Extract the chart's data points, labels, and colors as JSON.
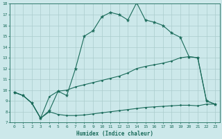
{
  "xlabel": "Humidex (Indice chaleur)",
  "bg_color": "#cce8ea",
  "grid_color": "#aacccc",
  "line_color": "#1a6b5a",
  "xlim": [
    -0.5,
    23.5
  ],
  "ylim": [
    7,
    18
  ],
  "yticks": [
    7,
    8,
    9,
    10,
    11,
    12,
    13,
    14,
    15,
    16,
    17,
    18
  ],
  "xticks": [
    0,
    1,
    2,
    3,
    4,
    5,
    6,
    7,
    8,
    9,
    10,
    11,
    12,
    13,
    14,
    15,
    16,
    17,
    18,
    19,
    20,
    21,
    22,
    23
  ],
  "line1_x": [
    0,
    1,
    2,
    3,
    4,
    5,
    6,
    7,
    8,
    9,
    10,
    11,
    12,
    13,
    14,
    15,
    16,
    17,
    18,
    19,
    20,
    21,
    22,
    23
  ],
  "line1_y": [
    9.8,
    9.5,
    8.8,
    7.4,
    8.1,
    9.9,
    9.5,
    12.0,
    15.0,
    15.5,
    16.8,
    17.2,
    17.0,
    16.5,
    18.1,
    16.5,
    16.3,
    16.0,
    15.3,
    14.9,
    13.1,
    13.0,
    9.0,
    8.7
  ],
  "line2_x": [
    0,
    1,
    2,
    3,
    4,
    5,
    6,
    7,
    8,
    9,
    10,
    11,
    12,
    13,
    14,
    15,
    16,
    17,
    18,
    19,
    20,
    21,
    22,
    23
  ],
  "line2_y": [
    9.8,
    9.5,
    8.8,
    7.4,
    9.4,
    9.9,
    10.0,
    10.3,
    10.5,
    10.7,
    10.9,
    11.1,
    11.3,
    11.6,
    12.0,
    12.2,
    12.35,
    12.5,
    12.7,
    13.0,
    13.1,
    13.0,
    9.0,
    8.7
  ],
  "line3_x": [
    0,
    1,
    2,
    3,
    4,
    5,
    6,
    7,
    8,
    9,
    10,
    11,
    12,
    13,
    14,
    15,
    16,
    17,
    18,
    19,
    20,
    21,
    22,
    23
  ],
  "line3_y": [
    9.8,
    9.5,
    8.8,
    7.4,
    8.0,
    7.75,
    7.65,
    7.65,
    7.7,
    7.8,
    7.9,
    8.0,
    8.1,
    8.2,
    8.3,
    8.4,
    8.45,
    8.5,
    8.55,
    8.6,
    8.6,
    8.55,
    8.7,
    8.7
  ]
}
